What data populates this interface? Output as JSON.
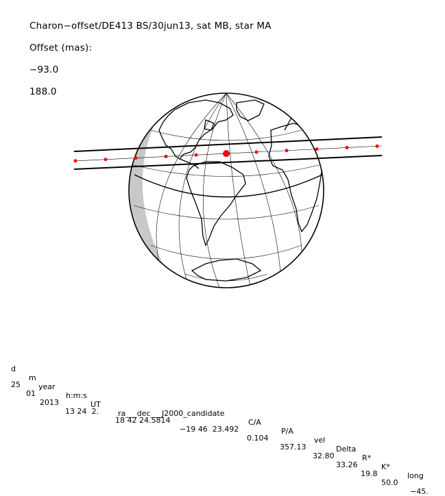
{
  "title": {
    "main": "Charon−offset/DE413 BS/30jun13, sat MB, star MA",
    "offset_label": "Offset (mas):",
    "offset_x": "−93.0",
    "offset_y": "188.0"
  },
  "table": {
    "headers": [
      "d",
      "m",
      "year",
      "h:m:s",
      "UT",
      "ra___dec___J2000_candidate",
      "C/A",
      "P/A",
      "vel",
      "Delta",
      "R*",
      "K*",
      "long"
    ],
    "values": [
      "25",
      "01",
      "2013",
      "13 24  2.",
      "18 42 24.5814",
      "−19 46  23.492",
      "0.104",
      "357.13",
      "32.80",
      "33.26",
      "19.8",
      "50.0",
      "−45."
    ]
  },
  "colors": {
    "track": "#ff0000",
    "line": "#000000",
    "night_shade": "#c8c8c8"
  }
}
